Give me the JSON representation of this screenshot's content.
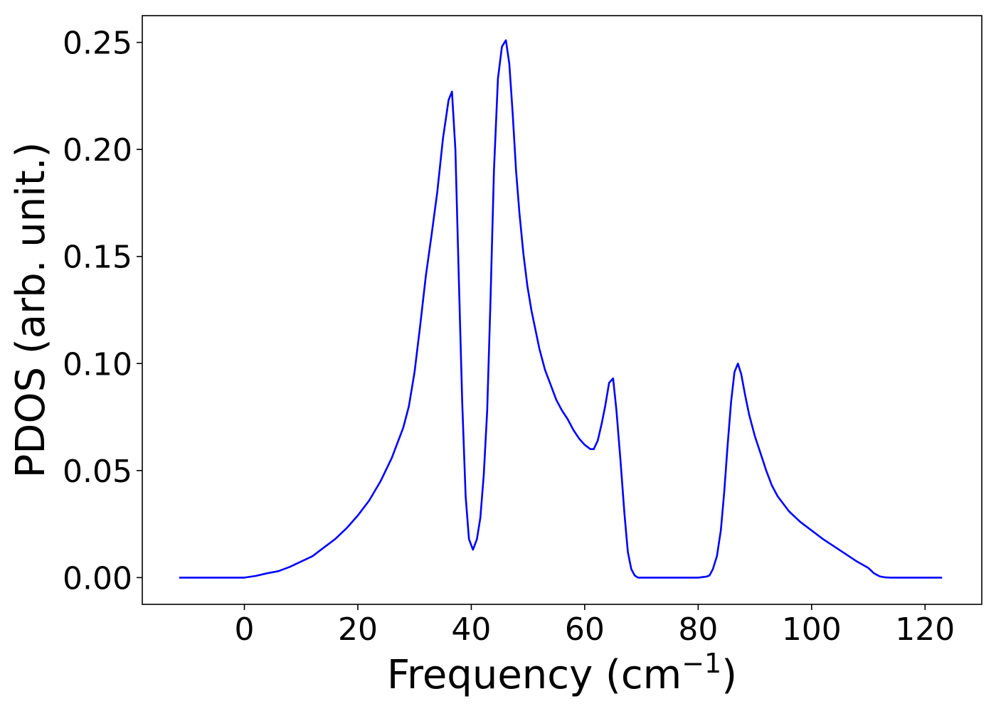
{
  "chart_data": {
    "type": "line",
    "title": "",
    "xlabel": "Frequency (cm",
    "xlabel_superscript": "−1",
    "xlabel_close": ")",
    "ylabel": "PDOS (arb. unit.)",
    "xlim": [
      -18,
      130
    ],
    "ylim": [
      -0.0125,
      0.2625
    ],
    "x_ticks": [
      0,
      20,
      40,
      60,
      80,
      100,
      120
    ],
    "x_tick_labels": [
      "0",
      "20",
      "40",
      "60",
      "80",
      "100",
      "120"
    ],
    "y_ticks": [
      0.0,
      0.05,
      0.1,
      0.15,
      0.2,
      0.25
    ],
    "y_tick_labels": [
      "0.00",
      "0.05",
      "0.10",
      "0.15",
      "0.20",
      "0.25"
    ],
    "grid": false,
    "legend": "none",
    "series": [
      {
        "color": "#0000ff",
        "x": [
          -11.5,
          -5,
          0,
          2,
          4,
          6,
          8,
          10,
          12,
          14,
          16,
          18,
          20,
          22,
          24,
          26,
          28,
          29,
          30,
          31,
          32,
          33,
          34,
          35,
          36,
          36.6,
          37.2,
          37.8,
          38.4,
          39,
          39.6,
          40.3,
          41,
          41.6,
          42.2,
          42.8,
          43.4,
          44,
          44.7,
          45.4,
          46.1,
          46.7,
          47.3,
          47.9,
          48.5,
          49.2,
          49.9,
          50.6,
          51.3,
          52,
          53,
          54,
          55,
          56,
          57,
          58,
          59,
          60,
          61,
          61.6,
          62.3,
          63,
          63.6,
          64.3,
          65,
          65.6,
          66.3,
          67,
          67.6,
          68.2,
          68.8,
          69.4,
          70,
          71,
          75,
          80,
          81.5,
          82,
          82.6,
          83.3,
          84,
          84.6,
          85.2,
          85.8,
          86.4,
          87,
          87.6,
          88.3,
          89,
          90,
          91,
          92,
          93,
          94,
          96,
          98,
          100,
          102,
          104,
          106,
          108,
          110,
          111,
          112,
          113,
          114,
          116,
          123
        ],
        "y": [
          0.0,
          0.0,
          0.0,
          0.0008,
          0.002,
          0.003,
          0.005,
          0.0075,
          0.01,
          0.014,
          0.018,
          0.023,
          0.029,
          0.036,
          0.045,
          0.056,
          0.07,
          0.08,
          0.096,
          0.118,
          0.141,
          0.16,
          0.18,
          0.205,
          0.223,
          0.227,
          0.2,
          0.14,
          0.082,
          0.038,
          0.018,
          0.013,
          0.018,
          0.028,
          0.048,
          0.078,
          0.13,
          0.19,
          0.233,
          0.248,
          0.251,
          0.24,
          0.217,
          0.19,
          0.17,
          0.151,
          0.136,
          0.125,
          0.116,
          0.107,
          0.097,
          0.09,
          0.083,
          0.078,
          0.074,
          0.069,
          0.065,
          0.062,
          0.06,
          0.06,
          0.064,
          0.072,
          0.08,
          0.091,
          0.093,
          0.078,
          0.055,
          0.03,
          0.012,
          0.004,
          0.001,
          0.0,
          0.0,
          0.0,
          0.0,
          0.0,
          0.0005,
          0.001,
          0.004,
          0.01,
          0.022,
          0.04,
          0.062,
          0.082,
          0.096,
          0.1,
          0.095,
          0.085,
          0.076,
          0.066,
          0.058,
          0.05,
          0.043,
          0.038,
          0.031,
          0.026,
          0.022,
          0.018,
          0.0145,
          0.011,
          0.0075,
          0.0045,
          0.002,
          0.0006,
          0.0001,
          0.0,
          0.0,
          0.0
        ]
      }
    ]
  }
}
